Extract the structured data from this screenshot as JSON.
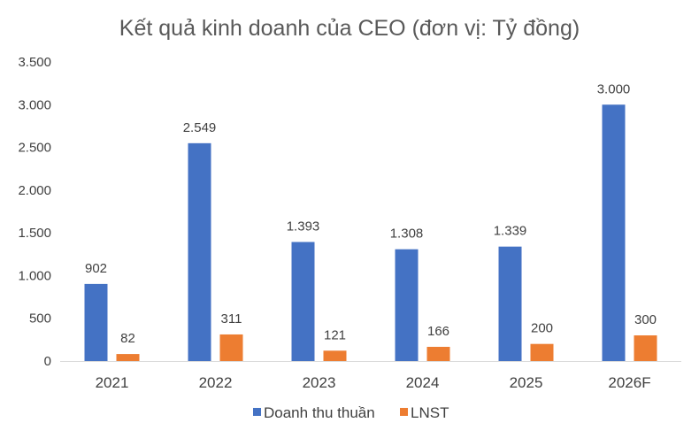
{
  "chart_data": {
    "type": "bar",
    "title": "Kết quả kinh doanh của CEO (đơn vị: Tỷ đồng)",
    "categories": [
      "2021",
      "2022",
      "2023",
      "2024",
      "2025",
      "2026F"
    ],
    "series": [
      {
        "name": "Doanh thu thuần",
        "color": "#4472C4",
        "values": [
          902,
          2549,
          1393,
          1308,
          1339,
          3000
        ],
        "labels": [
          "902",
          "2.549",
          "1.393",
          "1.308",
          "1.339",
          "3.000"
        ]
      },
      {
        "name": "LNST",
        "color": "#ED7D31",
        "values": [
          82,
          311,
          121,
          166,
          200,
          300
        ],
        "labels": [
          "82",
          "311",
          "121",
          "166",
          "200",
          "300"
        ]
      }
    ],
    "yticks": [
      0,
      500,
      1000,
      1500,
      2000,
      2500,
      3000,
      3500
    ],
    "ytick_labels": [
      "0",
      "500",
      "1.000",
      "1.500",
      "2.000",
      "2.500",
      "3.000",
      "3.500"
    ],
    "ylim": [
      0,
      3500
    ],
    "xlabel": "",
    "ylabel": "",
    "grid": false,
    "legend": "bottom"
  }
}
